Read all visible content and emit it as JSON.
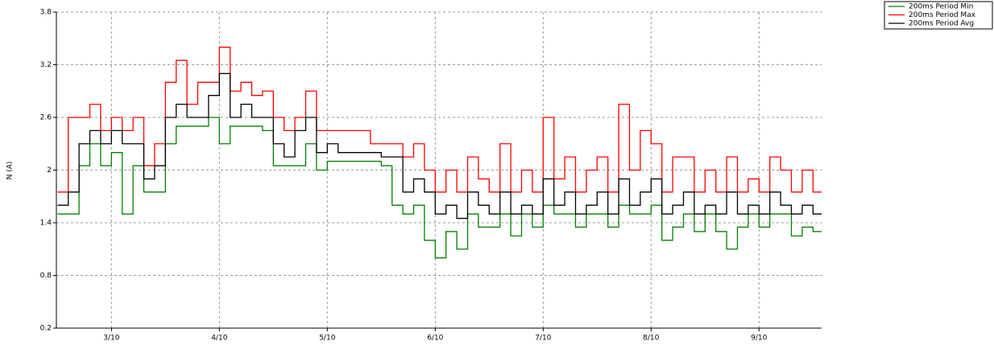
{
  "chart_data": {
    "type": "line",
    "step": true,
    "y_label": "N (A)",
    "x": [
      2.5,
      2.6,
      2.7,
      2.8,
      2.9,
      3.0,
      3.1,
      3.2,
      3.3,
      3.4,
      3.5,
      3.6,
      3.7,
      3.8,
      3.9,
      4.0,
      4.1,
      4.2,
      4.3,
      4.4,
      4.5,
      4.6,
      4.7,
      4.8,
      4.9,
      5.0,
      5.1,
      5.2,
      5.3,
      5.4,
      5.5,
      5.6,
      5.7,
      5.8,
      5.9,
      6.0,
      6.1,
      6.2,
      6.3,
      6.4,
      6.5,
      6.6,
      6.7,
      6.8,
      6.9,
      7.0,
      7.1,
      7.2,
      7.3,
      7.4,
      7.5,
      7.6,
      7.7,
      7.8,
      7.9,
      8.0,
      8.1,
      8.2,
      8.3,
      8.4,
      8.5,
      8.6,
      8.7,
      8.8,
      8.9,
      9.0,
      9.1,
      9.2,
      9.3,
      9.4,
      9.5
    ],
    "series": [
      {
        "name": "200ms Period Min",
        "color": "#008000",
        "values": [
          1.5,
          1.5,
          2.05,
          2.3,
          2.05,
          2.2,
          1.5,
          2.05,
          1.75,
          1.75,
          2.3,
          2.5,
          2.5,
          2.5,
          2.6,
          2.3,
          2.5,
          2.5,
          2.5,
          2.45,
          2.05,
          2.05,
          2.05,
          2.3,
          2.0,
          2.1,
          2.1,
          2.1,
          2.1,
          2.1,
          2.05,
          1.6,
          1.5,
          1.6,
          1.2,
          1.0,
          1.3,
          1.1,
          1.5,
          1.35,
          1.35,
          1.5,
          1.25,
          1.5,
          1.35,
          1.6,
          1.5,
          1.5,
          1.35,
          1.5,
          1.5,
          1.35,
          1.6,
          1.5,
          1.5,
          1.6,
          1.2,
          1.35,
          1.5,
          1.3,
          1.5,
          1.3,
          1.1,
          1.35,
          1.5,
          1.35,
          1.5,
          1.5,
          1.25,
          1.35,
          1.3
        ]
      },
      {
        "name": "200ms Period Max",
        "color": "#ff0000",
        "values": [
          1.75,
          2.6,
          2.6,
          2.75,
          2.45,
          2.6,
          2.45,
          2.6,
          2.05,
          2.3,
          3.0,
          3.25,
          2.75,
          3.0,
          3.0,
          3.4,
          2.9,
          3.0,
          2.85,
          2.9,
          2.6,
          2.45,
          2.6,
          2.9,
          2.45,
          2.45,
          2.45,
          2.45,
          2.45,
          2.3,
          2.3,
          2.3,
          2.15,
          2.3,
          2.0,
          1.75,
          2.0,
          1.75,
          2.15,
          1.9,
          1.75,
          2.3,
          1.75,
          2.0,
          1.75,
          2.6,
          1.9,
          2.15,
          1.75,
          2.0,
          2.15,
          1.75,
          2.75,
          2.0,
          2.45,
          2.3,
          1.75,
          2.15,
          2.15,
          1.75,
          2.0,
          1.75,
          2.15,
          1.75,
          1.9,
          1.75,
          2.15,
          2.0,
          1.75,
          2.0,
          1.75
        ]
      },
      {
        "name": "200ms Period Avg",
        "color": "#000000",
        "values": [
          1.6,
          1.75,
          2.3,
          2.45,
          2.3,
          2.45,
          2.3,
          2.3,
          1.9,
          2.05,
          2.6,
          2.75,
          2.6,
          2.6,
          2.85,
          3.1,
          2.6,
          2.75,
          2.6,
          2.6,
          2.3,
          2.15,
          2.45,
          2.6,
          2.2,
          2.3,
          2.2,
          2.2,
          2.2,
          2.2,
          2.15,
          2.15,
          1.75,
          1.9,
          1.75,
          1.5,
          1.6,
          1.45,
          1.75,
          1.6,
          1.5,
          1.75,
          1.5,
          1.6,
          1.5,
          1.9,
          1.6,
          1.75,
          1.5,
          1.6,
          1.75,
          1.5,
          1.9,
          1.6,
          1.75,
          1.9,
          1.5,
          1.6,
          1.75,
          1.5,
          1.6,
          1.5,
          1.75,
          1.5,
          1.6,
          1.5,
          1.75,
          1.6,
          1.5,
          1.6,
          1.5
        ]
      }
    ],
    "xlim": [
      2.49,
      9.58
    ],
    "xticks": [
      {
        "value": 3,
        "label": "3/10"
      },
      {
        "value": 4,
        "label": "4/10"
      },
      {
        "value": 5,
        "label": "5/10"
      },
      {
        "value": 6,
        "label": "6/10"
      },
      {
        "value": 7,
        "label": "7/10"
      },
      {
        "value": 8,
        "label": "8/10"
      },
      {
        "value": 9,
        "label": "9/10"
      }
    ],
    "ylim": [
      0.2,
      3.8
    ],
    "yticks": [
      0.2,
      0.8,
      1.4,
      2,
      2.6,
      3.2,
      3.8
    ],
    "grid": true,
    "legend": "top-right"
  }
}
